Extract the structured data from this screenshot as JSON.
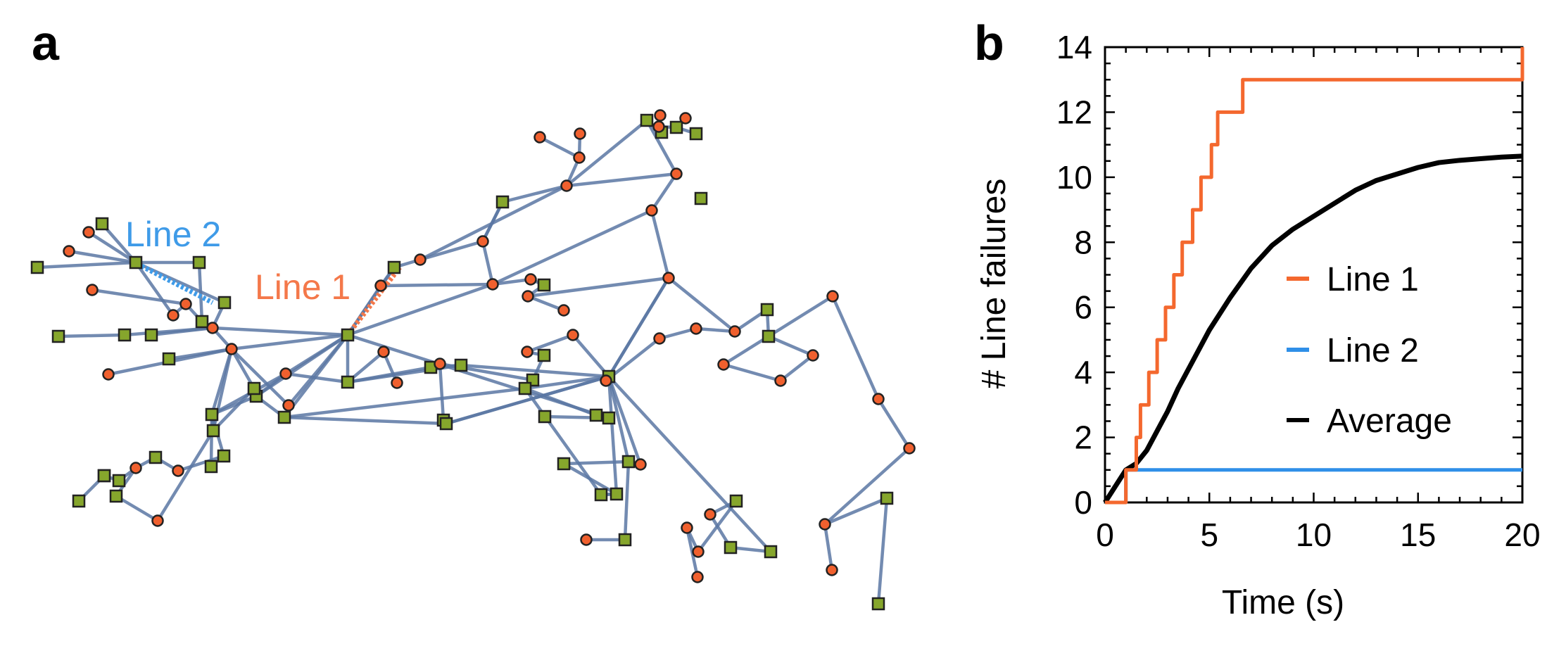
{
  "panels": {
    "a": {
      "label": "a"
    },
    "b": {
      "label": "b"
    }
  },
  "network": {
    "line1_label": "Line 1",
    "line2_label": "Line 2",
    "colors": {
      "edge": "#5b77a3",
      "circle_fill": "#f0602e",
      "square_fill": "#86a62c",
      "node_stroke": "#222222",
      "line1": "#f4784a",
      "line2": "#3f9be8"
    }
  },
  "chart_data": {
    "type": "line",
    "xlabel": "Time (s)",
    "ylabel": "# Line failures",
    "xlim": [
      0,
      20
    ],
    "ylim": [
      0,
      14
    ],
    "xticks": [
      0,
      5,
      10,
      15,
      20
    ],
    "yticks": [
      0,
      2,
      4,
      6,
      8,
      10,
      12,
      14
    ],
    "legend_position": "right-middle",
    "series": [
      {
        "name": "Line 1",
        "color": "#f4682e",
        "step": true,
        "x": [
          0,
          1,
          1.5,
          1.7,
          2.1,
          2.5,
          2.9,
          3.3,
          3.7,
          4.2,
          4.6,
          5.1,
          5.4,
          6.6,
          20
        ],
        "y": [
          0,
          1,
          2,
          3,
          4,
          5,
          6,
          7,
          8,
          9,
          10,
          11,
          12,
          13,
          14
        ]
      },
      {
        "name": "Line 2",
        "color": "#2f8fe8",
        "step": true,
        "x": [
          0,
          1,
          20
        ],
        "y": [
          0,
          1,
          1
        ]
      },
      {
        "name": "Average",
        "color": "#000000",
        "step": false,
        "x": [
          0,
          1,
          1.5,
          2,
          2.5,
          3,
          3.5,
          4,
          5,
          6,
          7,
          8,
          9,
          10,
          11,
          12,
          13,
          14,
          15,
          16,
          17,
          18,
          19,
          20
        ],
        "y": [
          0,
          1,
          1.2,
          1.6,
          2.2,
          2.8,
          3.5,
          4.1,
          5.3,
          6.3,
          7.2,
          7.9,
          8.4,
          8.8,
          9.2,
          9.6,
          9.9,
          10.1,
          10.3,
          10.45,
          10.52,
          10.57,
          10.62,
          10.65
        ]
      }
    ]
  }
}
